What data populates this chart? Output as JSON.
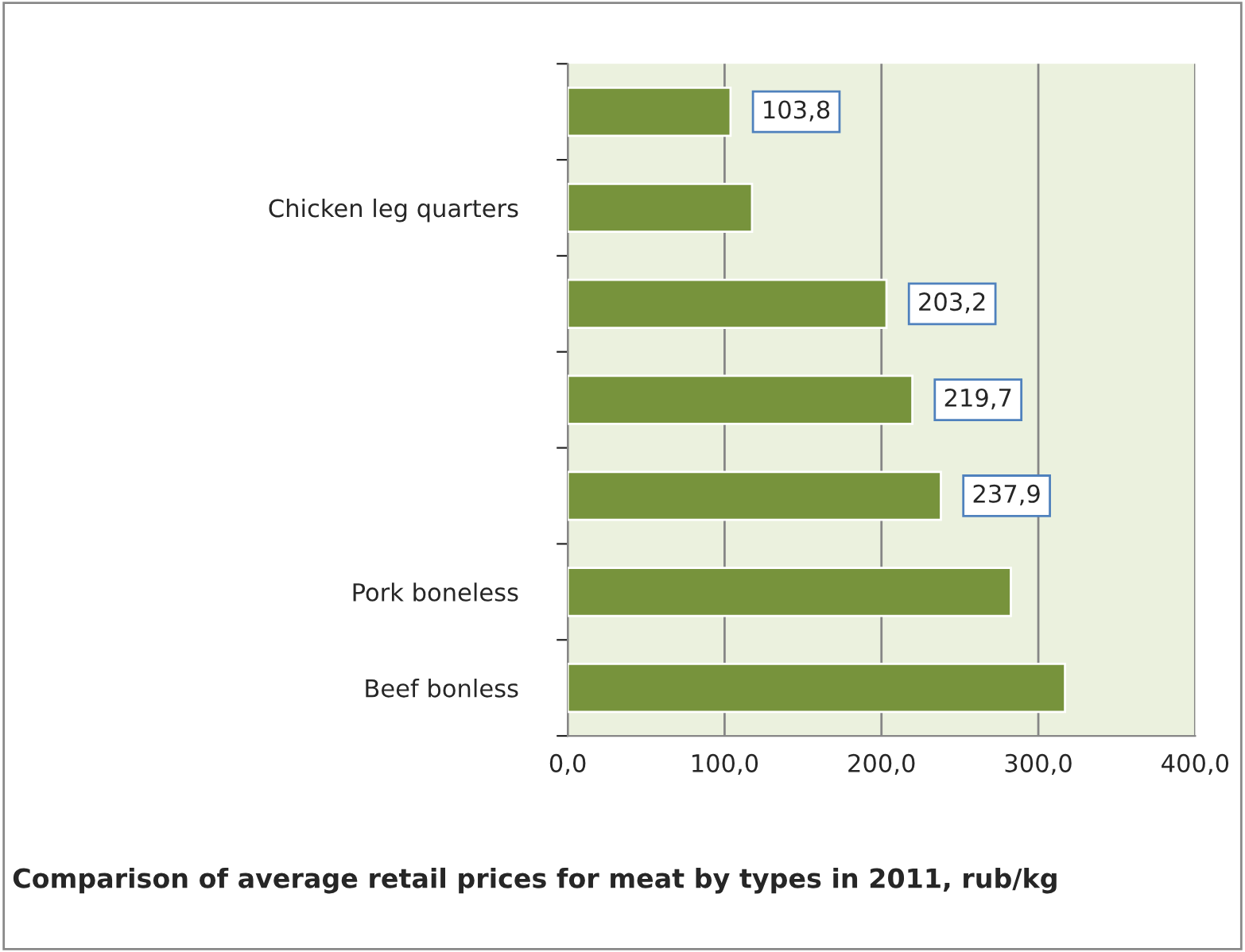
{
  "chart_data": {
    "type": "bar",
    "orientation": "horizontal",
    "title": "Comparison of average retail prices for meat by types in 2011, rub/kg",
    "categories": [
      null,
      "Chicken leg quarters",
      null,
      null,
      null,
      "Pork boneless",
      "Beef bonless"
    ],
    "values": [
      103.8,
      117.5,
      203.2,
      219.7,
      237.9,
      282.5,
      317
    ],
    "value_labels": [
      "103,8",
      null,
      "203,2",
      "219,7",
      "237,9",
      null,
      null
    ],
    "color": "#77933c",
    "xlim": [
      0,
      400
    ],
    "xticks": [
      {
        "value": 0,
        "label": "0,0"
      },
      {
        "value": 100,
        "label": "100,0"
      },
      {
        "value": 200,
        "label": "200,0"
      },
      {
        "value": 300,
        "label": "300,0"
      },
      {
        "value": 400,
        "label": "400,0"
      }
    ],
    "grid": "x"
  }
}
